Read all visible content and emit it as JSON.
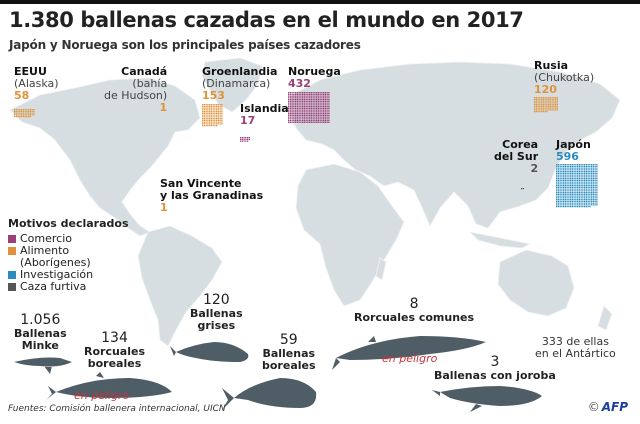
{
  "header": {
    "title": "1.380 ballenas cazadas en el mundo en 2017",
    "subtitle": "Japón y Noruega son los principales países cazadores"
  },
  "colors": {
    "comercio": "#9b3f78",
    "alimento": "#e0923a",
    "investigacion": "#2a8bbf",
    "caza_furtiva": "#555555",
    "land": "#d7dee2",
    "whale": "#4f5e66",
    "peligro": "#c8323a",
    "afp": "#1a3f9c"
  },
  "countries": [
    {
      "id": "eeuu",
      "name": "EEUU",
      "region": "(Alaska)",
      "count": "58",
      "motive": "alimento"
    },
    {
      "id": "canada",
      "name": "Canadá",
      "region": "(bahía de Hudson)",
      "region_line1": "(bahía",
      "region_line2": "de Hudson)",
      "count": "1",
      "motive": "alimento"
    },
    {
      "id": "groenlandia",
      "name": "Groenlandia",
      "region": "(Dinamarca)",
      "count": "153",
      "motive": "alimento"
    },
    {
      "id": "islandia",
      "name": "Islandia",
      "region": "",
      "count": "17",
      "motive": "comercio"
    },
    {
      "id": "noruega",
      "name": "Noruega",
      "region": "",
      "count": "432",
      "motive": "comercio"
    },
    {
      "id": "rusia",
      "name": "Rusia",
      "region": "(Chukotka)",
      "count": "120",
      "motive": "alimento"
    },
    {
      "id": "corea",
      "name": "Corea del Sur",
      "name_line1": "Corea",
      "name_line2": "del Sur",
      "region": "",
      "count": "2",
      "motive": "caza_furtiva"
    },
    {
      "id": "japon",
      "name": "Japón",
      "region": "",
      "count": "596",
      "motive": "investigacion"
    },
    {
      "id": "sanvincente",
      "name": "San Vincente y las Granadinas",
      "name_line1": "San Vincente",
      "name_line2": "y las Granadinas",
      "region": "",
      "count": "1",
      "motive": "alimento"
    }
  ],
  "japan_note": {
    "line1": "333 de ellas",
    "line2": "en el Antártico"
  },
  "legend": {
    "title": "Motivos declarados",
    "items": [
      {
        "label": "Comercio",
        "key": "comercio"
      },
      {
        "label": "Alimento",
        "label2": "(Aborígenes)",
        "key": "alimento"
      },
      {
        "label": "Investigación",
        "key": "investigacion"
      },
      {
        "label": "Caza furtiva",
        "key": "caza_furtiva"
      }
    ]
  },
  "species": [
    {
      "count": "1.056",
      "name_line1": "Ballenas",
      "name_line2": "Minke",
      "endangered": false
    },
    {
      "count": "134",
      "name_line1": "Rorcuales",
      "name_line2": "boreales",
      "endangered": true
    },
    {
      "count": "120",
      "name_line1": "Ballenas",
      "name_line2": "grises",
      "endangered": false
    },
    {
      "count": "59",
      "name_line1": "Ballenas",
      "name_line2": "boreales",
      "endangered": false
    },
    {
      "count": "8",
      "name_line1": "Rorcuales comunes",
      "name_line2": "",
      "endangered": true
    },
    {
      "count": "3",
      "name_line1": "Ballenas con joroba",
      "name_line2": "",
      "endangered": false
    }
  ],
  "endangered_label": "en peligro",
  "footer": {
    "source": "Fuentes: Comisión ballenera internacional, UICN",
    "copyright": "©",
    "agency": "AFP"
  },
  "icons": {
    "copyright": "copyright-icon",
    "logo": "afp-logo"
  }
}
